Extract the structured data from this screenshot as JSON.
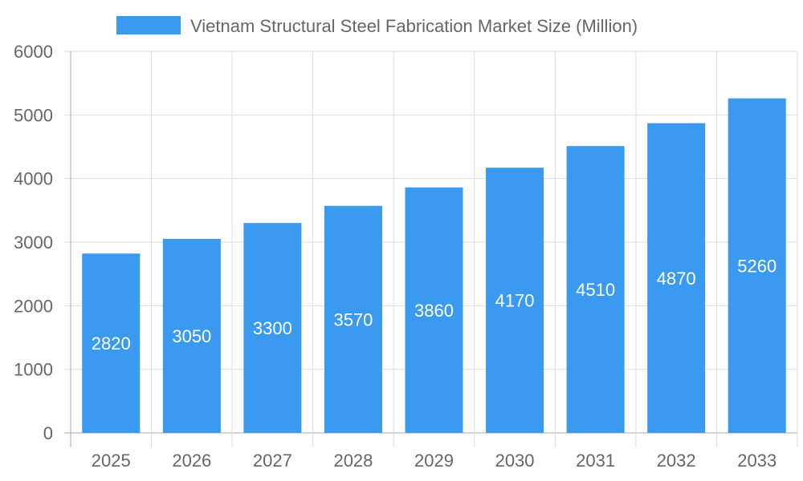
{
  "chart_data": {
    "type": "bar",
    "title": "",
    "xlabel": "",
    "ylabel": "",
    "categories": [
      "2025",
      "2026",
      "2027",
      "2028",
      "2029",
      "2030",
      "2031",
      "2032",
      "2033"
    ],
    "series": [
      {
        "name": "Vietnam Structural Steel Fabrication Market Size (Million)",
        "values": [
          2820,
          3050,
          3300,
          3570,
          3860,
          4170,
          4510,
          4870,
          5260
        ]
      }
    ],
    "ylim": [
      0,
      6000
    ],
    "yticks": [
      "0",
      "1000",
      "2000",
      "3000",
      "4000",
      "5000",
      "6000"
    ],
    "grid": true,
    "legend": "top",
    "data_labels": true,
    "colors": {
      "bar": "#3a9af0",
      "label": "#ffffff",
      "text": "#666666",
      "grid": "#dddddd"
    }
  }
}
